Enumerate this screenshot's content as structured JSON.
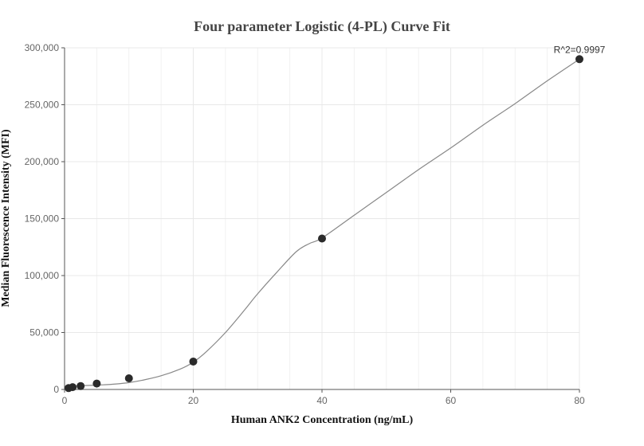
{
  "chart_data": {
    "type": "scatter",
    "title": "Four parameter Logistic (4-PL) Curve Fit",
    "xlabel": "Human ANK2 Concentration (ng/mL)",
    "ylabel": "Median Fluorescence Intensity (MFI)",
    "xlim": [
      0,
      80
    ],
    "ylim": [
      0,
      300000
    ],
    "x_ticks": [
      0,
      20,
      40,
      60,
      80
    ],
    "x_tick_labels": [
      "0",
      "20",
      "40",
      "60",
      "80"
    ],
    "y_ticks": [
      0,
      50000,
      100000,
      150000,
      200000,
      250000,
      300000
    ],
    "y_tick_labels": [
      "0",
      "50,000",
      "100,000",
      "150,000",
      "200,000",
      "250,000",
      "300,000"
    ],
    "grid": true,
    "annotation": "R^2=0.9997",
    "points": [
      {
        "x": 0.625,
        "y": 1200
      },
      {
        "x": 1.25,
        "y": 2000
      },
      {
        "x": 2.5,
        "y": 3000
      },
      {
        "x": 5,
        "y": 5200
      },
      {
        "x": 10,
        "y": 9800
      },
      {
        "x": 20,
        "y": 24500
      },
      {
        "x": 40,
        "y": 132500
      },
      {
        "x": 80,
        "y": 290000
      }
    ],
    "fit_curve": {
      "x": [
        0,
        2,
        5,
        8,
        10,
        12,
        15,
        18,
        20,
        22,
        25,
        28,
        30,
        33,
        36,
        38,
        40,
        45,
        50,
        55,
        60,
        65,
        70,
        75,
        80
      ],
      "y": [
        3000,
        3200,
        3800,
        4800,
        6000,
        8000,
        12000,
        18000,
        24000,
        33000,
        50000,
        70000,
        84000,
        103000,
        121000,
        128000,
        133000,
        153000,
        173000,
        193000,
        212000,
        232000,
        251000,
        271000,
        290000
      ]
    },
    "colors": {
      "point": "#2b2b2b",
      "curve": "#888888",
      "grid": "#e8e8e8"
    }
  }
}
